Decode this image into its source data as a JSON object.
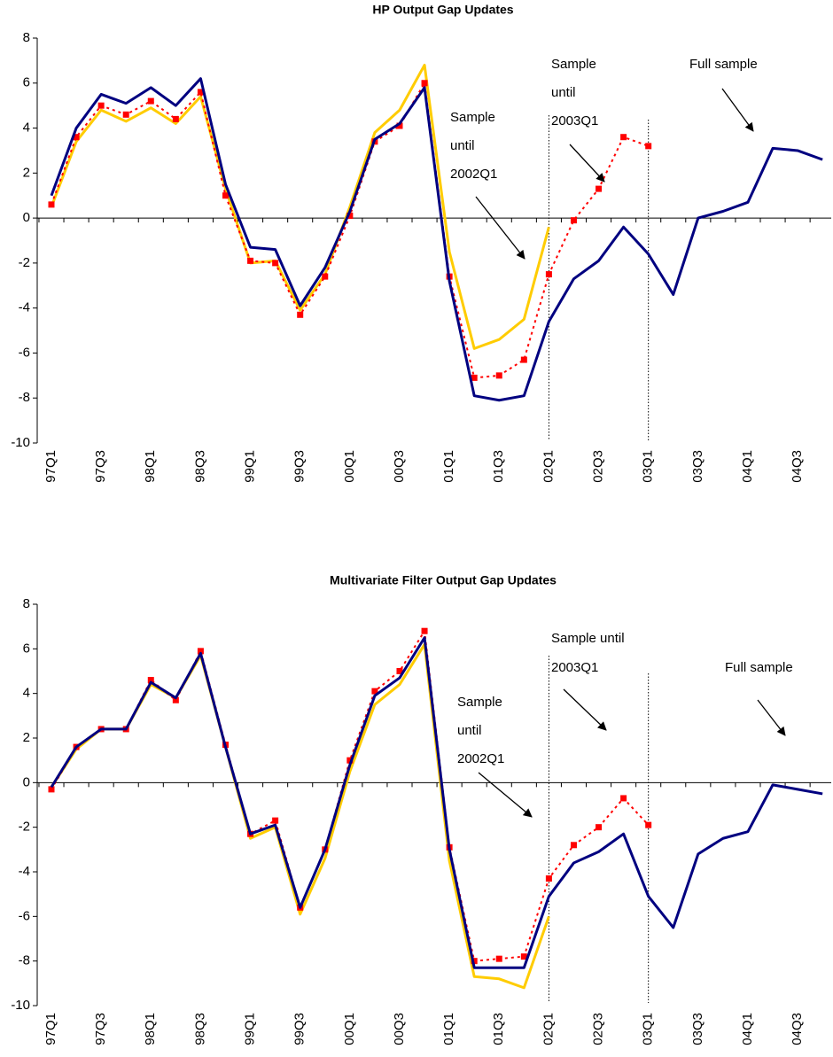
{
  "chart_data": [
    {
      "type": "line",
      "title": "HP Output Gap Updates",
      "categories": [
        "97Q1",
        null,
        "97Q3",
        null,
        "98Q1",
        null,
        "98Q3",
        null,
        "99Q1",
        null,
        "99Q3",
        null,
        "00Q1",
        null,
        "00Q3",
        null,
        "01Q1",
        null,
        "01Q3",
        null,
        "02Q1",
        null,
        "02Q3",
        null,
        "03Q1",
        null,
        "03Q3",
        null,
        "04Q1",
        null,
        "04Q3",
        null
      ],
      "ylim": [
        -10,
        8
      ],
      "yticks": [
        -10,
        -8,
        -6,
        -4,
        -2,
        0,
        2,
        4,
        6,
        8
      ],
      "series": [
        {
          "color": "#ffcc00",
          "linestyle": "solid",
          "markers": false,
          "values": [
            0.5,
            3.4,
            4.8,
            4.3,
            4.9,
            4.2,
            5.4,
            1.3,
            -2.0,
            -1.9,
            -4.1,
            -2.5,
            0.5,
            3.8,
            4.8,
            6.8,
            -1.5,
            -5.8,
            -5.4,
            -4.5,
            -0.4,
            null,
            null,
            null,
            null,
            null,
            null,
            null,
            null,
            null,
            null,
            null
          ]
        },
        {
          "color": "#ff0000",
          "linestyle": "dotted",
          "markers": true,
          "values": [
            0.6,
            3.6,
            5.0,
            4.6,
            5.2,
            4.4,
            5.6,
            1.0,
            -1.9,
            -2.0,
            -4.3,
            -2.6,
            0.1,
            3.4,
            4.1,
            6.0,
            -2.6,
            -7.1,
            -7.0,
            -6.3,
            -2.5,
            -0.1,
            1.3,
            3.6,
            3.2,
            null,
            null,
            null,
            null,
            null,
            null,
            null
          ]
        },
        {
          "color": "#000080",
          "linestyle": "solid",
          "markers": false,
          "values": [
            1.0,
            4.0,
            5.5,
            5.1,
            5.8,
            5.0,
            6.2,
            1.5,
            -1.3,
            -1.4,
            -3.9,
            -2.2,
            0.3,
            3.5,
            4.2,
            5.8,
            -2.8,
            -7.9,
            -8.1,
            -7.9,
            -4.6,
            -2.7,
            -1.9,
            -0.4,
            -1.6,
            -3.4,
            0.0,
            0.3,
            0.7,
            3.1,
            3.0,
            2.6
          ]
        }
      ],
      "annotations": [
        {
          "lines": [
            "Sample",
            "until",
            "2002Q1"
          ]
        },
        {
          "lines": [
            "Sample",
            "until",
            "2003Q1"
          ]
        },
        {
          "lines": [
            "Full sample"
          ]
        }
      ]
    },
    {
      "type": "line",
      "title": "Multivariate Filter Output Gap Updates",
      "categories": [
        "97Q1",
        null,
        "97Q3",
        null,
        "98Q1",
        null,
        "98Q3",
        null,
        "99Q1",
        null,
        "99Q3",
        null,
        "00Q1",
        null,
        "00Q3",
        null,
        "01Q1",
        null,
        "01Q3",
        null,
        "02Q1",
        null,
        "02Q3",
        null,
        "03Q1",
        null,
        "03Q3",
        null,
        "04Q1",
        null,
        "04Q3",
        null
      ],
      "ylim": [
        -10,
        8
      ],
      "yticks": [
        -10,
        -8,
        -6,
        -4,
        -2,
        0,
        2,
        4,
        6,
        8
      ],
      "series": [
        {
          "color": "#ffcc00",
          "linestyle": "solid",
          "markers": false,
          "values": [
            -0.2,
            1.5,
            2.4,
            2.4,
            4.4,
            3.8,
            5.7,
            1.6,
            -2.5,
            -2.0,
            -5.9,
            -3.4,
            0.5,
            3.5,
            4.4,
            6.2,
            -3.5,
            -8.7,
            -8.8,
            -9.2,
            -6.0,
            null,
            null,
            null,
            null,
            null,
            null,
            null,
            null,
            null,
            null,
            null
          ]
        },
        {
          "color": "#ff0000",
          "linestyle": "dotted",
          "markers": true,
          "values": [
            -0.3,
            1.6,
            2.4,
            2.4,
            4.6,
            3.7,
            5.9,
            1.7,
            -2.3,
            -1.7,
            -5.6,
            -3.0,
            1.0,
            4.1,
            5.0,
            6.8,
            -2.9,
            -8.0,
            -7.9,
            -7.8,
            -4.3,
            -2.8,
            -2.0,
            -0.7,
            -1.9,
            null,
            null,
            null,
            null,
            null,
            null,
            null
          ]
        },
        {
          "color": "#000080",
          "linestyle": "solid",
          "markers": false,
          "values": [
            -0.2,
            1.6,
            2.4,
            2.4,
            4.5,
            3.8,
            5.8,
            1.6,
            -2.3,
            -1.9,
            -5.6,
            -3.0,
            0.8,
            3.9,
            4.7,
            6.5,
            -3.0,
            -8.3,
            -8.3,
            -8.3,
            -5.1,
            -3.6,
            -3.1,
            -2.3,
            -5.1,
            -6.5,
            -3.2,
            -2.5,
            -2.2,
            -0.1,
            -0.3,
            -0.5
          ]
        }
      ],
      "annotations": [
        {
          "lines": [
            "Sample",
            "until",
            "2002Q1"
          ]
        },
        {
          "lines": [
            "Sample until",
            "2003Q1"
          ]
        },
        {
          "lines": [
            "Full sample"
          ]
        }
      ]
    }
  ]
}
